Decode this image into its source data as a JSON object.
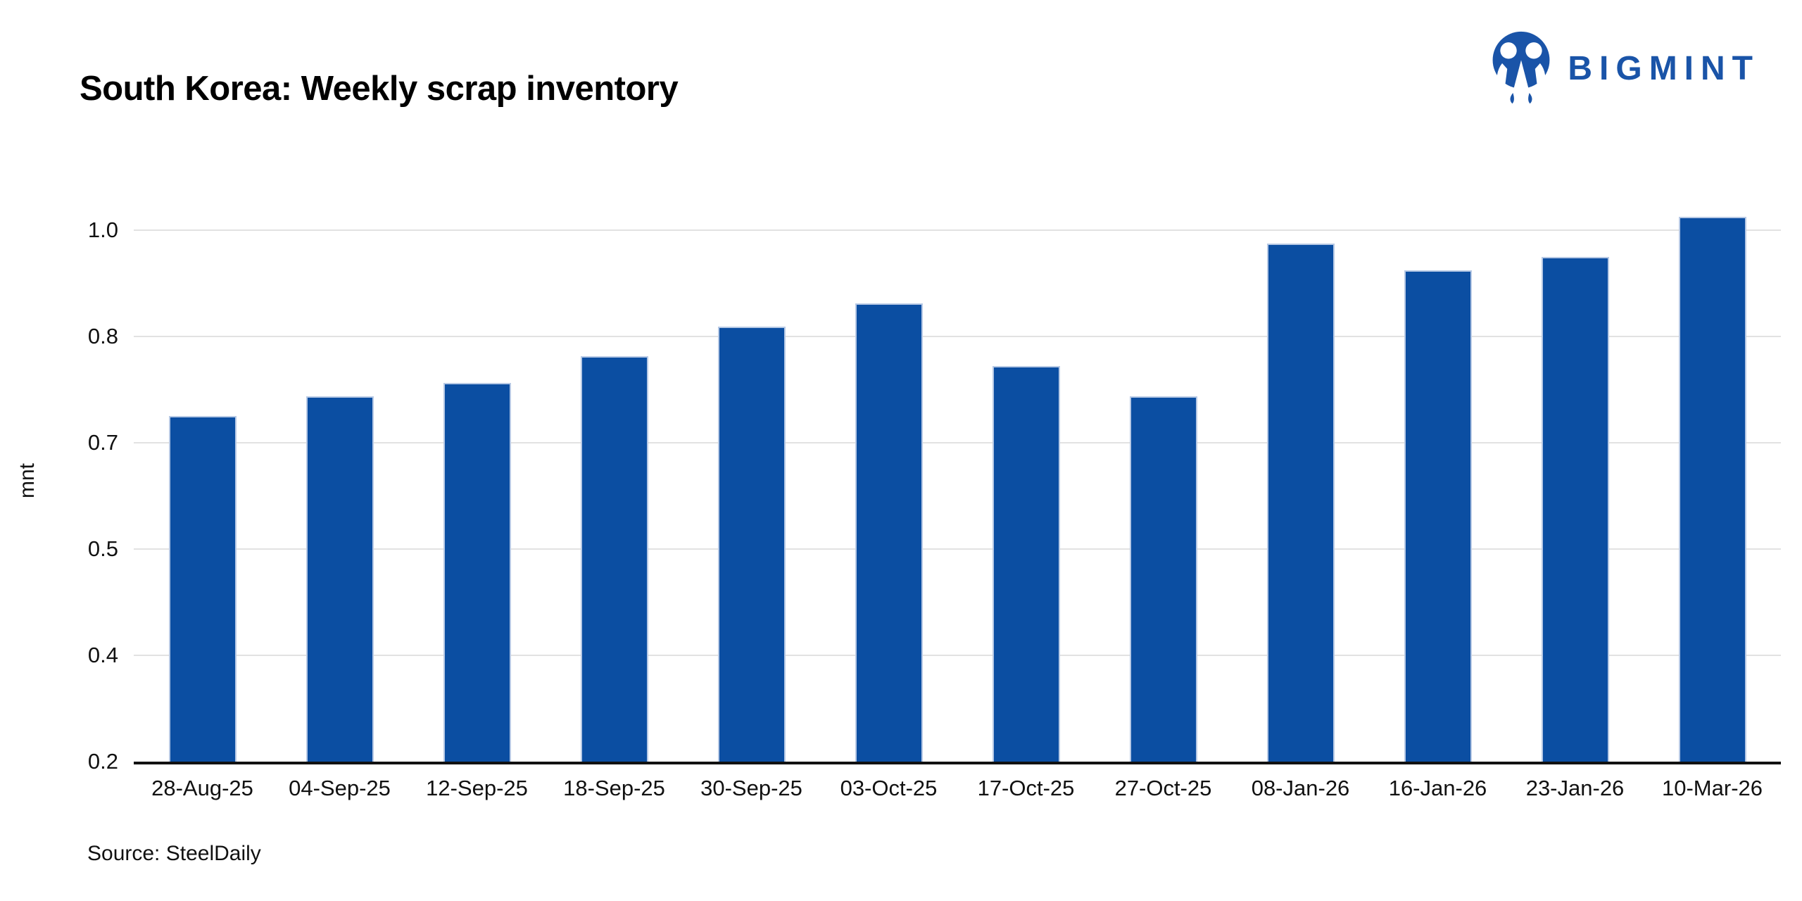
{
  "header": {
    "title": "South Korea: Weekly scrap inventory",
    "brand": {
      "name": "BIGMINT",
      "logo_icon": "bigmint-logo",
      "color": "#1A54A8"
    }
  },
  "chart_data": {
    "type": "bar",
    "title": "South Korea: Weekly scrap inventory",
    "xlabel": "",
    "ylabel": "mnt",
    "categories": [
      "28-Aug-25",
      "04-Sep-25",
      "12-Sep-25",
      "18-Sep-25",
      "30-Sep-25",
      "03-Oct-25",
      "17-Oct-25",
      "27-Oct-25",
      "08-Jan-26",
      "16-Jan-26",
      "23-Jan-26",
      "10-Mar-26"
    ],
    "values": [
      0.72,
      0.75,
      0.77,
      0.81,
      0.855,
      0.89,
      0.795,
      0.75,
      0.98,
      0.94,
      0.96,
      1.02
    ],
    "series_name": "Weekly scrap inventory (mnt)",
    "ylim": [
      0.2,
      1.0
    ],
    "ytick_labels": [
      "0.2",
      "0.4",
      "0.5",
      "0.7",
      "0.8",
      "1.0"
    ],
    "grid": "horizontal",
    "legend": "none",
    "bar_color": "#0B4EA2",
    "gridline_color": "#e2e2e2",
    "axis_color": "#111111"
  },
  "footer": {
    "source": "Source: SteelDaily"
  }
}
